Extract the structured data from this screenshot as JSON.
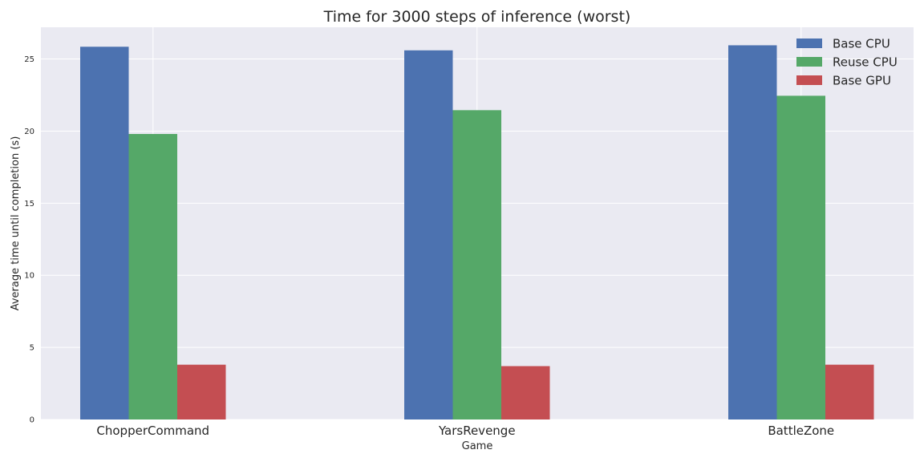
{
  "chart_data": {
    "type": "bar",
    "title": "Time for 3000 steps of inference (worst)",
    "xlabel": "Game",
    "ylabel": "Average time until completion (s)",
    "categories": [
      "ChopperCommand",
      "YarsRevenge",
      "BattleZone"
    ],
    "series": [
      {
        "name": "Base CPU",
        "color": "#4c72b0",
        "values": [
          25.85,
          25.6,
          25.95
        ]
      },
      {
        "name": "Reuse CPU",
        "color": "#55a868",
        "values": [
          19.8,
          21.45,
          22.45
        ]
      },
      {
        "name": "Base GPU",
        "color": "#c44e52",
        "values": [
          3.8,
          3.7,
          3.8
        ]
      }
    ],
    "yticks": [
      0,
      5,
      10,
      15,
      20,
      25
    ],
    "ylim": [
      0,
      27.2
    ],
    "grid": true,
    "legend_position": "top-right",
    "background": "#eaeaf2",
    "gridline_color": "#ffffff"
  }
}
